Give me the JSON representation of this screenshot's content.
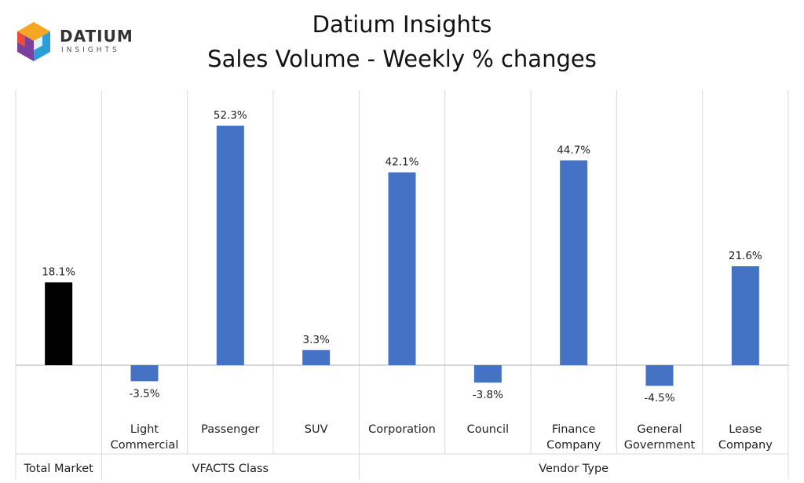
{
  "title_line1": "Datium Insights",
  "title_line2": "Sales Volume - Weekly % changes",
  "logo": {
    "word": "DATIUM",
    "sub": "INSIGHTS",
    "icon": "datium-cube-logo"
  },
  "colors": {
    "bar_default": "#4472C4",
    "bar_total": "#000000",
    "grid": "#d9d9d9"
  },
  "chart_data": {
    "type": "bar",
    "title": "Sales Volume - Weekly % changes",
    "categories": [
      [
        "Total",
        "Market"
      ],
      [
        "Light",
        "Commercial"
      ],
      [
        "Passenger"
      ],
      [
        "SUV"
      ],
      [
        "Corporation"
      ],
      [
        "Council"
      ],
      [
        "Finance",
        "Company"
      ],
      [
        "General",
        "Government"
      ],
      [
        "Lease",
        "Company"
      ]
    ],
    "values": [
      18.1,
      -3.5,
      52.3,
      3.3,
      42.1,
      -3.8,
      44.7,
      -4.5,
      21.6
    ],
    "data_labels": [
      "18.1%",
      "-3.5%",
      "52.3%",
      "3.3%",
      "42.1%",
      "-3.8%",
      "44.7%",
      "-4.5%",
      "21.6%"
    ],
    "groups": [
      {
        "label": "Total Market",
        "from": 0,
        "to": 0
      },
      {
        "label": "VFACTS Class",
        "from": 1,
        "to": 3
      },
      {
        "label": "Vendor Type",
        "from": 4,
        "to": 8
      }
    ],
    "ylim": [
      -10,
      60
    ],
    "xlabel": "",
    "ylabel": "",
    "legend": "none",
    "grid": false
  }
}
